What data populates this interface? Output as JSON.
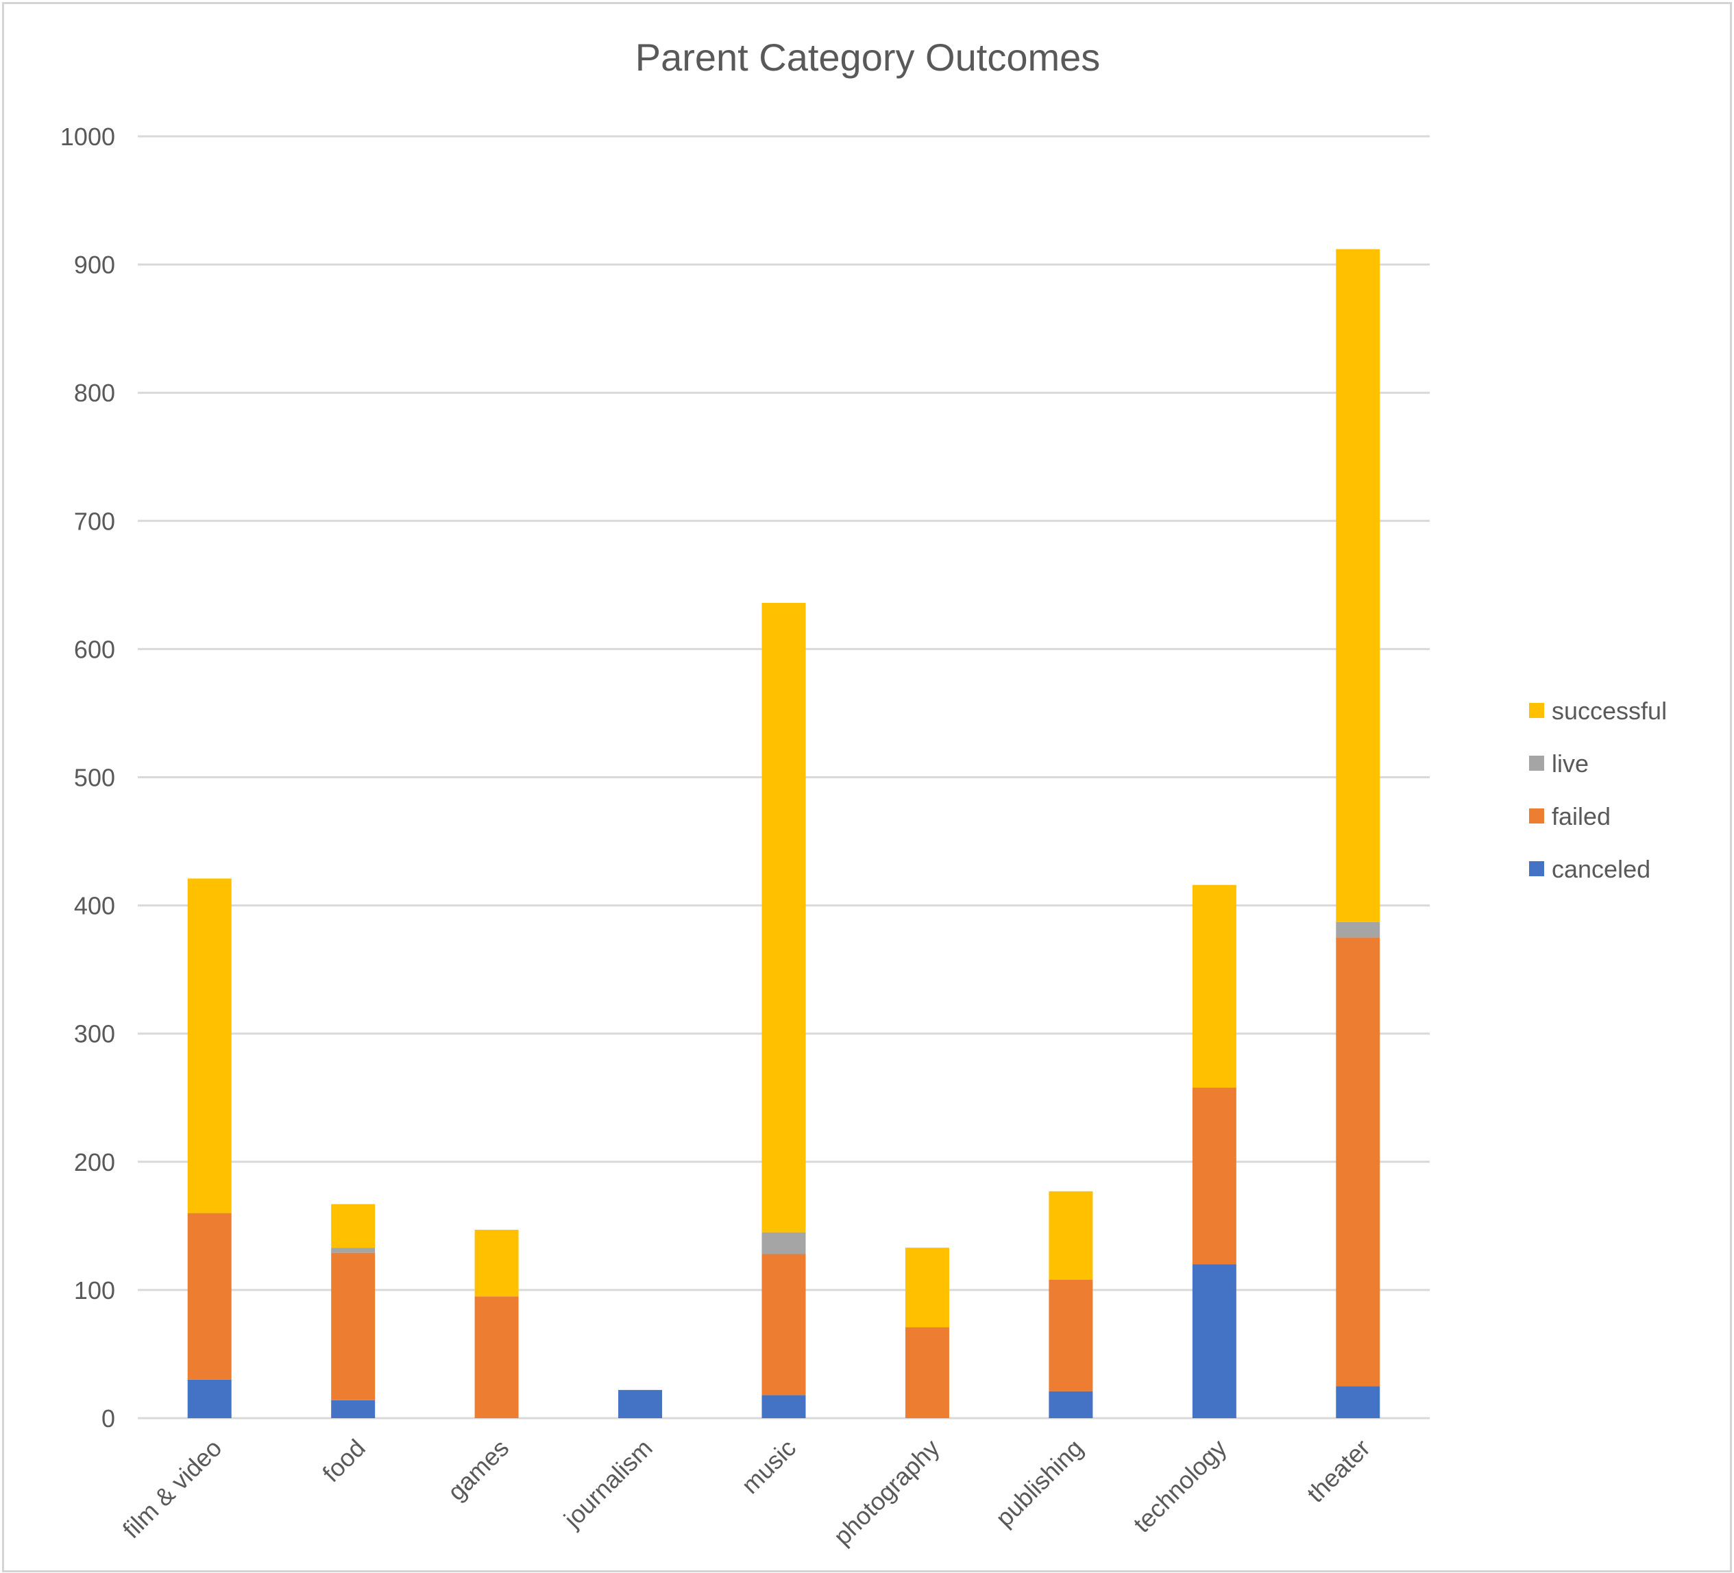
{
  "chart_data": {
    "type": "bar",
    "stacked": true,
    "title": "Parent Category Outcomes",
    "xlabel": "",
    "ylabel": "",
    "ylim": [
      0,
      1000
    ],
    "yticks": [
      0,
      100,
      200,
      300,
      400,
      500,
      600,
      700,
      800,
      900,
      1000
    ],
    "grid": true,
    "legend_position": "right",
    "categories": [
      "film & video",
      "food",
      "games",
      "journalism",
      "music",
      "photography",
      "publishing",
      "technology",
      "theater"
    ],
    "series": [
      {
        "name": "canceled",
        "color": "#4472C4",
        "values": [
          30,
          14,
          0,
          22,
          18,
          0,
          21,
          120,
          25
        ]
      },
      {
        "name": "failed",
        "color": "#ED7D31",
        "values": [
          130,
          115,
          95,
          0,
          110,
          71,
          87,
          138,
          350
        ]
      },
      {
        "name": "live",
        "color": "#A5A5A5",
        "values": [
          0,
          4,
          0,
          0,
          17,
          0,
          0,
          0,
          12
        ]
      },
      {
        "name": "successful",
        "color": "#FFC000",
        "values": [
          261,
          34,
          52,
          0,
          491,
          62,
          69,
          158,
          525
        ]
      }
    ]
  }
}
